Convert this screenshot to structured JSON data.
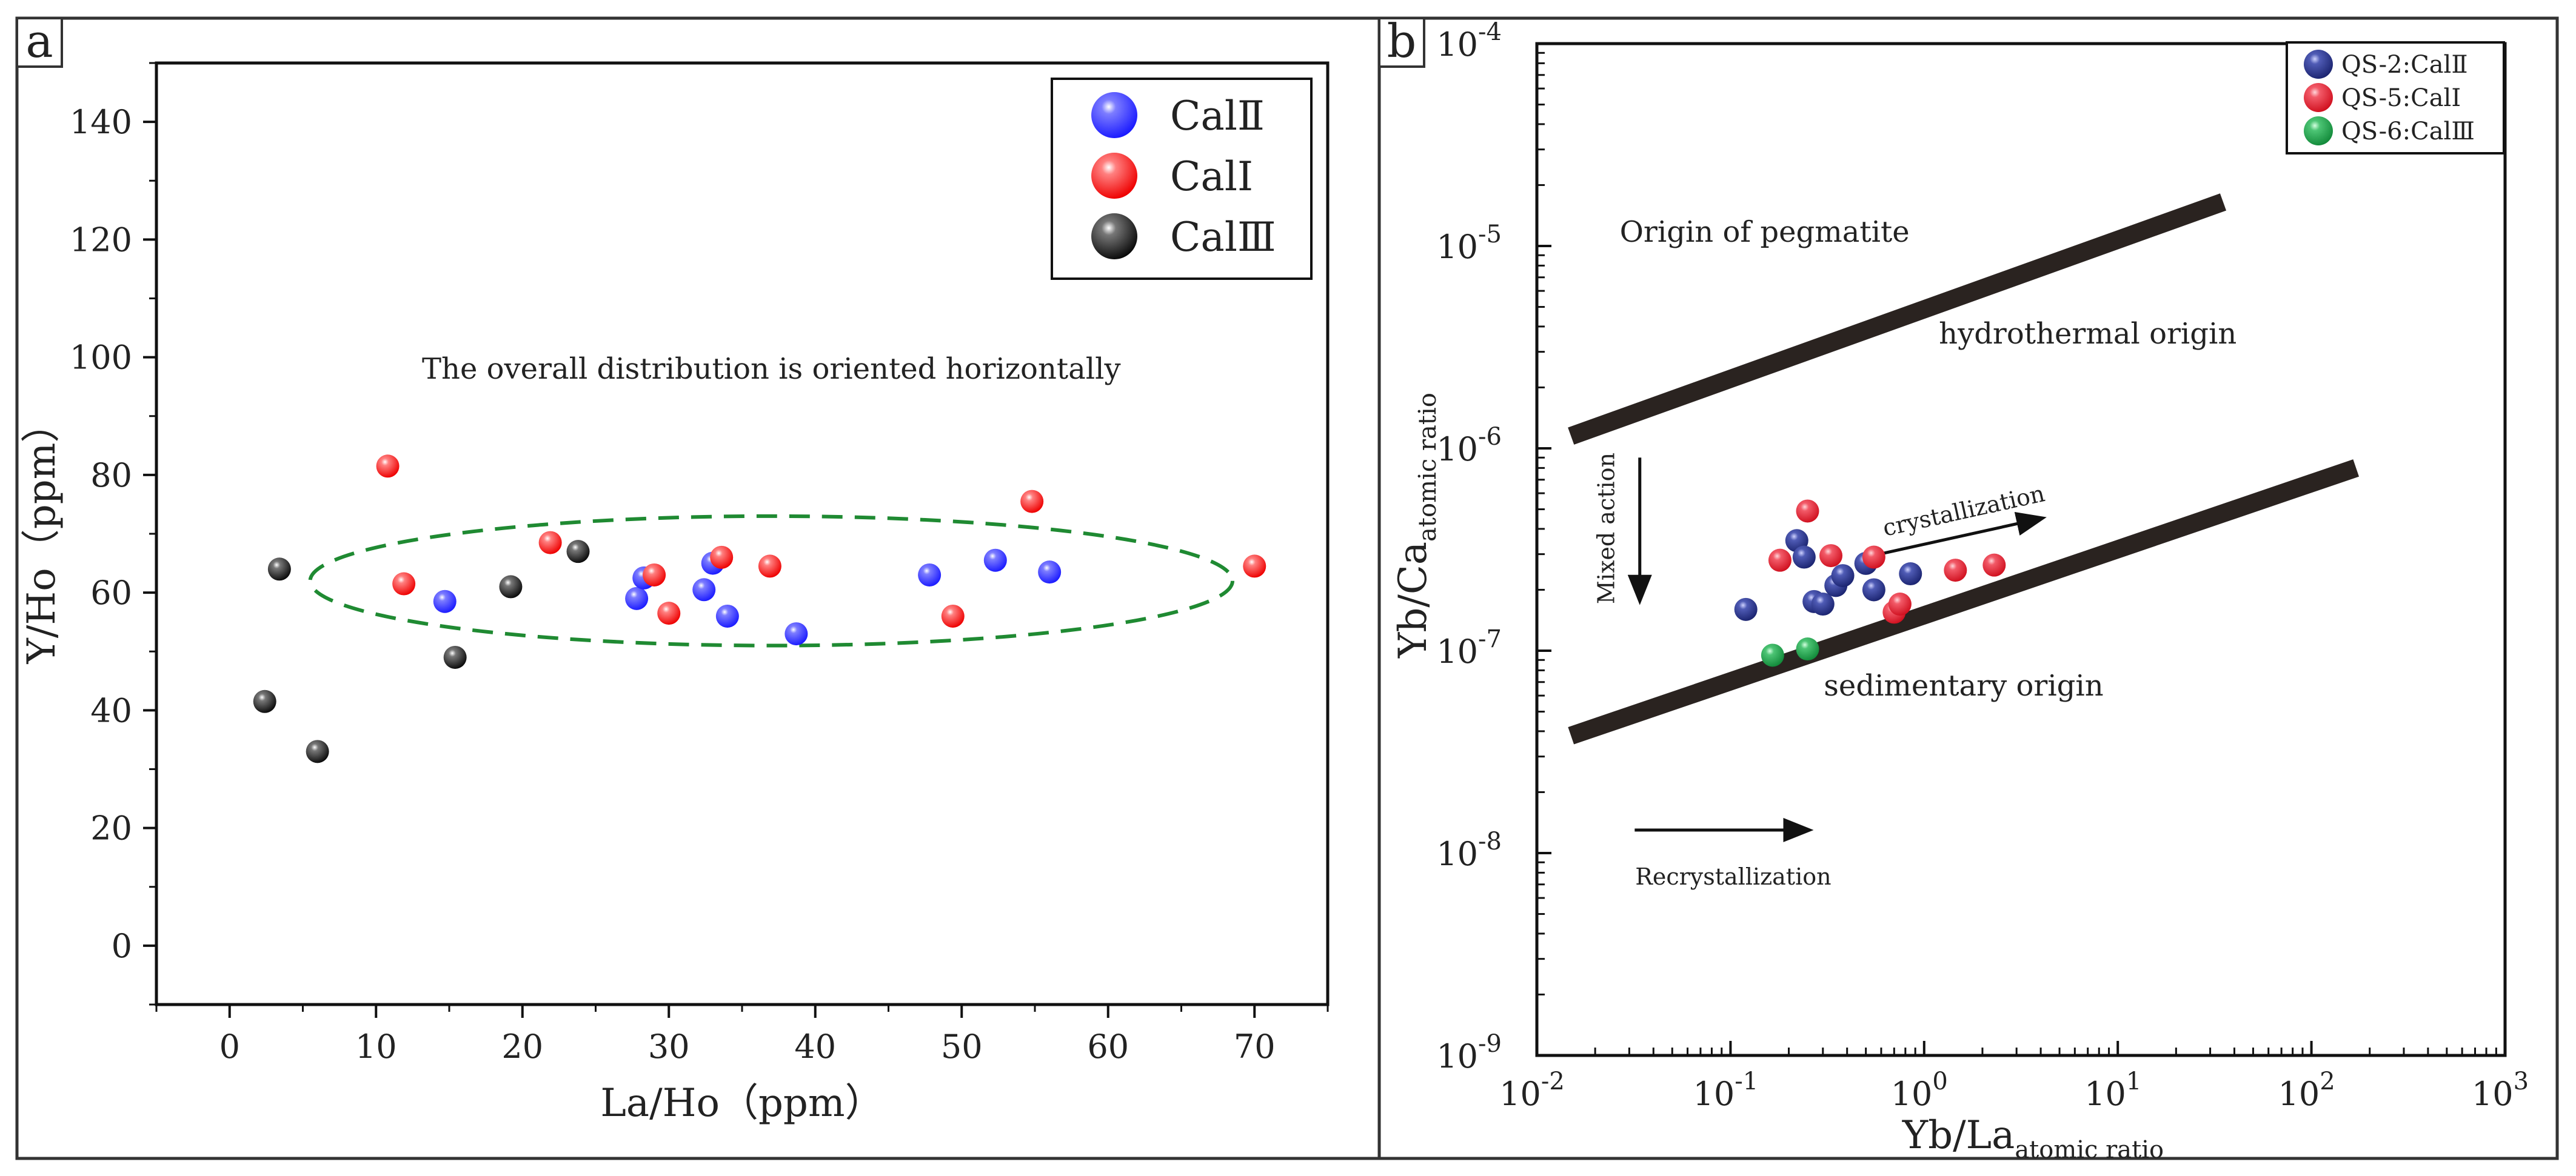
{
  "panels": {
    "a": {
      "letter": "a"
    },
    "b": {
      "letter": "b"
    }
  },
  "chart_data": [
    {
      "type": "scatter",
      "panel": "a",
      "xlabel": "La/Ho（ppm）",
      "ylabel": "Y/Ho（ppm）",
      "xlim": [
        -5,
        75
      ],
      "ylim": [
        -10,
        150
      ],
      "xticks": [
        0,
        10,
        20,
        30,
        40,
        50,
        60,
        70
      ],
      "yticks": [
        0,
        20,
        40,
        60,
        80,
        100,
        120,
        140
      ],
      "grid": false,
      "legend_position": "top-right",
      "annotations": [
        {
          "text": "The overall distribution is oriented horizontally",
          "x": 37,
          "y": 98
        }
      ],
      "ellipse": {
        "center": [
          37,
          62
        ],
        "rx": 31.5,
        "ry": 11
      },
      "series": [
        {
          "name": "CalⅡ",
          "color": "#1a1aff",
          "points": [
            [
              14.7,
              58.5
            ],
            [
              27.8,
              59
            ],
            [
              28.3,
              62.5
            ],
            [
              32.4,
              60.5
            ],
            [
              33,
              65
            ],
            [
              34,
              56
            ],
            [
              38.7,
              53
            ],
            [
              47.8,
              63
            ],
            [
              52.3,
              65.5
            ],
            [
              56,
              63.5
            ]
          ]
        },
        {
          "name": "CalⅠ",
          "color": "#ff1a1a",
          "points": [
            [
              10.8,
              81.5
            ],
            [
              11.9,
              61.5
            ],
            [
              21.9,
              68.5
            ],
            [
              29,
              63
            ],
            [
              30,
              56.5
            ],
            [
              33.6,
              66
            ],
            [
              36.9,
              64.5
            ],
            [
              49.4,
              56
            ],
            [
              54.8,
              75.5
            ],
            [
              70,
              64.5
            ]
          ]
        },
        {
          "name": "CalⅢ",
          "color": "#111111",
          "points": [
            [
              2.4,
              41.5
            ],
            [
              3.4,
              64
            ],
            [
              6,
              33
            ],
            [
              15.4,
              49
            ],
            [
              19.2,
              61
            ],
            [
              23.8,
              67
            ]
          ]
        }
      ]
    },
    {
      "type": "scatter",
      "panel": "b",
      "scale": "log-log",
      "xlabel": "Yb/La",
      "xlabel_sub": "atomic ratio",
      "ylabel": "Yb/Ca",
      "ylabel_sub": "atomic ratio",
      "xlim": [
        0.01,
        1000
      ],
      "ylim": [
        1e-09,
        0.0001
      ],
      "xtick_exponents": [
        -2,
        -1,
        0,
        1,
        2,
        3
      ],
      "ytick_exponents": [
        -9,
        -8,
        -7,
        -6,
        -5,
        -4
      ],
      "tick_base": "10",
      "grid": false,
      "legend_position": "top-right",
      "boundary_lines": [
        {
          "from": [
            0.015,
            1.15e-06
          ],
          "to": [
            35,
            1.65e-05
          ]
        },
        {
          "from": [
            0.015,
            3.8e-08
          ],
          "to": [
            170,
            8e-07
          ]
        }
      ],
      "region_labels": [
        {
          "text": "Origin of pegmatite",
          "x": 0.15,
          "y": 1.05e-05
        },
        {
          "text": "hydrothermal origin",
          "x": 7,
          "y": 3.3e-06
        },
        {
          "text": "sedimentary origin",
          "x": 1.6,
          "y": 6e-08
        }
      ],
      "arrows": [
        {
          "label": "Mixed action",
          "from": [
            0.034,
            9e-07
          ],
          "to": [
            0.034,
            1.8e-07
          ]
        },
        {
          "label": "crystallization",
          "from": [
            0.5,
            2.9e-07
          ],
          "to": [
            4,
            4.5e-07
          ]
        },
        {
          "label": "Recrystallization",
          "from": [
            0.032,
            1.3e-08
          ],
          "to": [
            0.25,
            1.3e-08
          ]
        }
      ],
      "series": [
        {
          "name": "QS-2:CalⅡ",
          "color": "#1f2a80",
          "points": [
            [
              0.12,
              1.6e-07
            ],
            [
              0.22,
              3.5e-07
            ],
            [
              0.24,
              2.9e-07
            ],
            [
              0.27,
              1.75e-07
            ],
            [
              0.3,
              1.7e-07
            ],
            [
              0.35,
              2.1e-07
            ],
            [
              0.38,
              2.35e-07
            ],
            [
              0.5,
              2.7e-07
            ],
            [
              0.55,
              2e-07
            ],
            [
              0.85,
              2.4e-07
            ]
          ]
        },
        {
          "name": "QS-5:CalⅠ",
          "color": "#e8182a",
          "points": [
            [
              0.18,
              2.8e-07
            ],
            [
              0.25,
              4.9e-07
            ],
            [
              0.33,
              2.95e-07
            ],
            [
              0.55,
              2.9e-07
            ],
            [
              0.7,
              1.55e-07
            ],
            [
              0.75,
              1.7e-07
            ],
            [
              1.45,
              2.5e-07
            ],
            [
              2.3,
              2.65e-07
            ]
          ]
        },
        {
          "name": "QS-6:CalⅢ",
          "color": "#1f9e4a",
          "points": [
            [
              0.165,
              9.5e-08
            ],
            [
              0.25,
              1.02e-07
            ]
          ]
        }
      ]
    }
  ]
}
